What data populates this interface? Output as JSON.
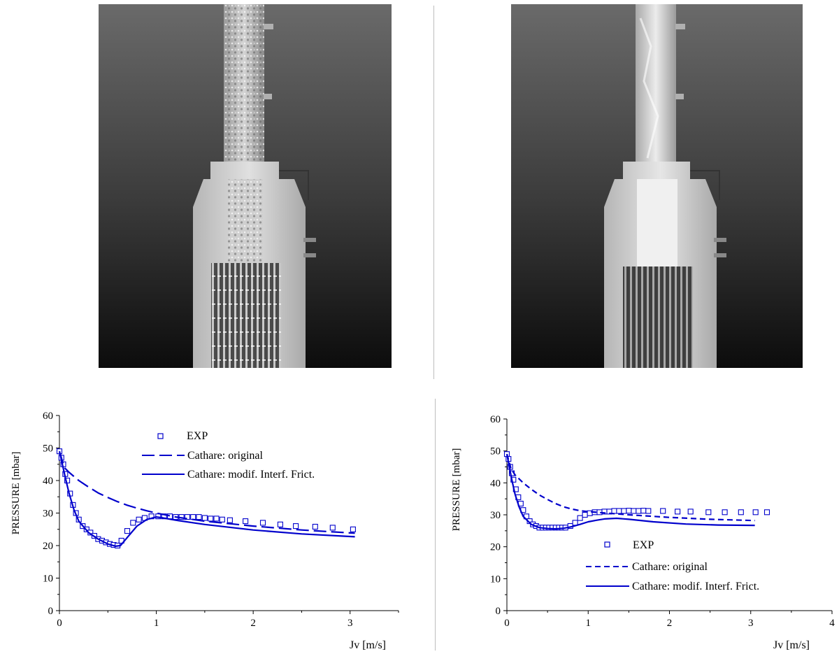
{
  "photos": [
    {
      "subject": "air-water two-phase flow in transparent test section above rod bundle"
    },
    {
      "subject": "air-water two-phase flow in transparent test section above rod bundle"
    }
  ],
  "chart_data": [
    {
      "type": "scatter",
      "xlabel": "Jv [m/s]",
      "ylabel": "PRESSURE   [mbar]",
      "xlim": [
        0,
        3.5
      ],
      "ylim": [
        0,
        60
      ],
      "xticks": [
        "0",
        "1",
        "2",
        "3"
      ],
      "yticks": [
        "0",
        "10",
        "20",
        "30",
        "40",
        "50",
        "60"
      ],
      "legend_position": "top-center",
      "series": [
        {
          "name": "EXP",
          "kind": "markers",
          "marker": "open-square",
          "color": "#0000cc",
          "x": [
            0.0,
            0.02,
            0.04,
            0.06,
            0.08,
            0.11,
            0.14,
            0.17,
            0.2,
            0.24,
            0.28,
            0.32,
            0.36,
            0.4,
            0.44,
            0.48,
            0.52,
            0.56,
            0.6,
            0.64,
            0.7,
            0.76,
            0.82,
            0.88,
            0.95,
            1.02,
            1.08,
            1.14,
            1.2,
            1.26,
            1.32,
            1.38,
            1.44,
            1.5,
            1.56,
            1.62,
            1.68,
            1.76,
            1.92,
            2.1,
            2.28,
            2.44,
            2.64,
            2.82,
            3.03
          ],
          "y": [
            49,
            47,
            45,
            42,
            40,
            36,
            32.5,
            30,
            28,
            26,
            25,
            24,
            23,
            22,
            21.5,
            21,
            20.5,
            20.2,
            20,
            21.5,
            24.5,
            27,
            28,
            28.5,
            29,
            29,
            29,
            29,
            28.8,
            28.8,
            28.8,
            28.8,
            28.8,
            28.5,
            28.3,
            28.3,
            28,
            27.8,
            27.5,
            27,
            26.5,
            26,
            25.8,
            25.5,
            25
          ]
        },
        {
          "name": "Cathare: original",
          "kind": "line",
          "dash": "long-dash",
          "color": "#0000cc",
          "x": [
            0,
            0.05,
            0.1,
            0.2,
            0.3,
            0.4,
            0.5,
            0.6,
            0.7,
            0.8,
            0.9,
            1.0,
            1.2,
            1.5,
            2.0,
            2.5,
            3.05
          ],
          "y": [
            49,
            44,
            42.5,
            40,
            38,
            36.2,
            34.8,
            33.5,
            32.4,
            31.5,
            30.7,
            30,
            28.8,
            27.5,
            26,
            24.8,
            23.8
          ]
        },
        {
          "name": "Cathare: modif. Interf. Frict.",
          "kind": "line",
          "dash": "solid",
          "color": "#0000cc",
          "x": [
            0,
            0.03,
            0.06,
            0.1,
            0.15,
            0.2,
            0.3,
            0.4,
            0.5,
            0.58,
            0.63,
            0.7,
            0.8,
            0.9,
            1.0,
            1.05,
            1.2,
            1.5,
            2.0,
            2.5,
            3.05
          ],
          "y": [
            49,
            45,
            41,
            36,
            31,
            27.5,
            24,
            22,
            20.5,
            19.8,
            20,
            22.5,
            26,
            28,
            28.8,
            28.6,
            27.8,
            26.5,
            24.8,
            23.6,
            22.7
          ]
        }
      ]
    },
    {
      "type": "scatter",
      "xlabel": "Jv [m/s]",
      "ylabel": "PRESSURE  [mbar]",
      "xlim": [
        0,
        4
      ],
      "ylim": [
        0,
        60
      ],
      "xticks": [
        "0",
        "1",
        "2",
        "3",
        "4"
      ],
      "yticks": [
        "0",
        "10",
        "20",
        "30",
        "40",
        "50",
        "60"
      ],
      "legend_position": "bottom-center",
      "series": [
        {
          "name": "EXP",
          "kind": "markers",
          "marker": "open-square",
          "color": "#0000cc",
          "x": [
            0.0,
            0.02,
            0.04,
            0.06,
            0.08,
            0.11,
            0.14,
            0.17,
            0.2,
            0.24,
            0.28,
            0.32,
            0.36,
            0.4,
            0.44,
            0.48,
            0.52,
            0.56,
            0.6,
            0.64,
            0.68,
            0.72,
            0.78,
            0.84,
            0.9,
            0.96,
            1.02,
            1.08,
            1.14,
            1.2,
            1.26,
            1.32,
            1.38,
            1.44,
            1.5,
            1.56,
            1.62,
            1.68,
            1.74,
            1.92,
            2.1,
            2.26,
            2.48,
            2.68,
            2.88,
            3.06,
            3.2
          ],
          "y": [
            49,
            47.5,
            45,
            43,
            41,
            38,
            35.5,
            33.5,
            31.5,
            29.5,
            28,
            27,
            26.5,
            26,
            26,
            26,
            26,
            26,
            26,
            26,
            26,
            26,
            26.5,
            27.5,
            29,
            30,
            30.5,
            30.8,
            30.8,
            31,
            31,
            31.2,
            31.2,
            31.2,
            31.3,
            31.2,
            31.2,
            31.3,
            31.2,
            31.2,
            31,
            31,
            30.8,
            30.8,
            30.8,
            30.8,
            30.8
          ]
        },
        {
          "name": "Cathare: original",
          "kind": "line",
          "dash": "short-dash",
          "color": "#0000cc",
          "x": [
            0,
            0.05,
            0.1,
            0.2,
            0.3,
            0.4,
            0.5,
            0.6,
            0.7,
            0.8,
            0.9,
            1.0,
            1.2,
            1.5,
            2.0,
            2.5,
            3.05
          ],
          "y": [
            49,
            44.5,
            42.5,
            40,
            38,
            36.2,
            34.8,
            33.5,
            32.5,
            31.8,
            31.3,
            31,
            30.6,
            30,
            29.2,
            28.6,
            28.2
          ]
        },
        {
          "name": "Cathare: modif. Interf. Frict.",
          "kind": "line",
          "dash": "solid",
          "color": "#0000cc",
          "x": [
            0,
            0.03,
            0.06,
            0.1,
            0.15,
            0.2,
            0.3,
            0.4,
            0.5,
            0.6,
            0.7,
            0.8,
            0.9,
            1.0,
            1.1,
            1.2,
            1.35,
            1.5,
            1.8,
            2.2,
            2.6,
            3.05
          ],
          "y": [
            49,
            45,
            41,
            36.5,
            32.5,
            29.5,
            27,
            26,
            25.7,
            25.6,
            25.8,
            26.3,
            27,
            27.8,
            28.3,
            28.7,
            28.9,
            28.6,
            27.8,
            27.1,
            26.8,
            26.7
          ]
        }
      ]
    }
  ]
}
